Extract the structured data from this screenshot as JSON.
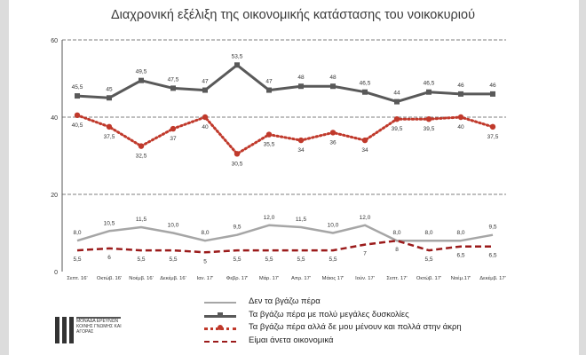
{
  "chart_data": {
    "type": "line",
    "title": "Διαχρονική εξέλιξη της οικονομικής κατάστασης του νοικοκυριού",
    "categories": [
      "Σεπτ. 16'",
      "Οκτώβ. 16'",
      "Νοέμβ. 16'",
      "Δεκέμβ. 16'",
      "Ιαν. 17'",
      "Φεβρ. 17'",
      "Μάρ. 17'",
      "Απρ. 17'",
      "Μάιος 17'",
      "Ιούν. 17'",
      "Σεπτ. 17'",
      "Οκτώβ. 17'",
      "Νοέμ.17'",
      "Δεκέμβ. 17'"
    ],
    "ylim": [
      0,
      60
    ],
    "yticks": [
      "0",
      "20",
      "40",
      "60"
    ],
    "grid": true,
    "series": [
      {
        "name": "Δεν τα βγάζω πέρα",
        "color": "#a6a6a6",
        "style": "solid-plain",
        "values": [
          8.0,
          10.5,
          11.5,
          10.0,
          8.0,
          9.5,
          12.0,
          11.5,
          10.0,
          12.0,
          8.0,
          8.0,
          8.0,
          9.5
        ],
        "labels": [
          "8,0",
          "10,5",
          "11,5",
          "10,0",
          "8,0",
          "9,5",
          "12,0",
          "11,5",
          "10,0",
          "12,0",
          "8,0",
          "8,0",
          "8,0",
          "9,5"
        ]
      },
      {
        "name": "Τα βγάζω πέρα με πολύ μεγάλες δυσκολίες",
        "color": "#595959",
        "style": "solid-markers",
        "values": [
          45.5,
          45,
          49.5,
          47.5,
          47,
          53.5,
          47,
          48,
          48,
          46.5,
          44,
          46.5,
          46,
          46
        ],
        "labels": [
          "45,5",
          "45",
          "49,5",
          "47,5",
          "47",
          "53,5",
          "47",
          "48",
          "48",
          "46,5",
          "44",
          "46,5",
          "46",
          "46"
        ]
      },
      {
        "name": "Τα βγάζω πέρα αλλά δε μου μένουν και πολλά στην άκρη",
        "color": "#c0392b",
        "style": "dotted-markers",
        "values": [
          40.5,
          37.5,
          32.5,
          37,
          40,
          30.5,
          35.5,
          34,
          36,
          34,
          39.5,
          39.5,
          40,
          37.5
        ],
        "labels": [
          "40,5",
          "37,5",
          "32,5",
          "37",
          "40",
          "30,5",
          "35,5",
          "34",
          "36",
          "34",
          "39,5",
          "39,5",
          "40",
          "37,5"
        ]
      },
      {
        "name": "Είμαι άνετα οικονομικά",
        "color": "#9b1b1b",
        "style": "dashed",
        "values": [
          5.5,
          6,
          5.5,
          5.5,
          5,
          5.5,
          5.5,
          5.5,
          5.5,
          7,
          8,
          5.5,
          6.5,
          6.5
        ],
        "labels": [
          "5,5",
          "6",
          "5,5",
          "5,5",
          "5",
          "5,5",
          "5,5",
          "5,5",
          "5,5",
          "7",
          "8",
          "5,5",
          "6,5",
          "6,5"
        ]
      }
    ]
  },
  "logo": {
    "text": "ΜΟΝΑΔΑ ΕΡΕΥΝΩΝ ΚΟΙΝΗΣ ΓΝΩΜΗΣ ΚΑΙ ΑΓΟΡΑΣ"
  }
}
